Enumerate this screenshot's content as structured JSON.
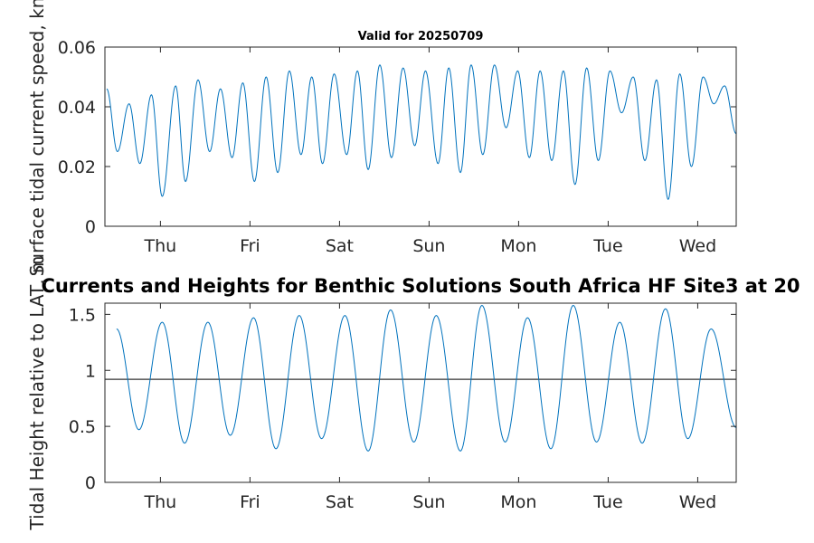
{
  "chart_data": [
    {
      "type": "line",
      "title": "Valid for 20250709",
      "ylabel": "Surface tidal current speed, kn",
      "xlabel": "",
      "xlim": [
        0,
        7.05
      ],
      "ylim": [
        0,
        0.06
      ],
      "yticks": [
        0,
        0.02,
        0.04,
        0.06
      ],
      "ytick_labels": [
        "0",
        "0.02",
        "0.04",
        "0.06"
      ],
      "xticks": [
        0.62,
        1.62,
        2.62,
        3.62,
        4.62,
        5.62,
        6.62
      ],
      "xtick_labels": [
        "Thu",
        "Fri",
        "Sat",
        "Sun",
        "Mon",
        "Tue",
        "Wed"
      ],
      "grid": false,
      "series_color": "#0072BD",
      "peaks": [
        [
          0.02,
          0.046
        ],
        [
          0.27,
          0.041
        ],
        [
          0.52,
          0.044
        ],
        [
          0.79,
          0.047
        ],
        [
          1.04,
          0.049
        ],
        [
          1.29,
          0.046
        ],
        [
          1.54,
          0.048
        ],
        [
          1.8,
          0.05
        ],
        [
          2.06,
          0.052
        ],
        [
          2.31,
          0.05
        ],
        [
          2.56,
          0.051
        ],
        [
          2.82,
          0.052
        ],
        [
          3.07,
          0.054
        ],
        [
          3.33,
          0.053
        ],
        [
          3.58,
          0.052
        ],
        [
          3.84,
          0.053
        ],
        [
          4.09,
          0.054
        ],
        [
          4.35,
          0.054
        ],
        [
          4.61,
          0.052
        ],
        [
          4.86,
          0.052
        ],
        [
          5.12,
          0.052
        ],
        [
          5.38,
          0.053
        ],
        [
          5.64,
          0.052
        ],
        [
          5.9,
          0.05
        ],
        [
          6.16,
          0.049
        ],
        [
          6.42,
          0.051
        ],
        [
          6.68,
          0.05
        ],
        [
          6.92,
          0.047
        ]
      ],
      "troughs": [
        [
          0.14,
          0.025
        ],
        [
          0.39,
          0.021
        ],
        [
          0.64,
          0.01
        ],
        [
          0.9,
          0.015
        ],
        [
          1.17,
          0.025
        ],
        [
          1.42,
          0.023
        ],
        [
          1.67,
          0.015
        ],
        [
          1.93,
          0.018
        ],
        [
          2.19,
          0.024
        ],
        [
          2.43,
          0.021
        ],
        [
          2.7,
          0.024
        ],
        [
          2.94,
          0.019
        ],
        [
          3.2,
          0.023
        ],
        [
          3.46,
          0.027
        ],
        [
          3.72,
          0.021
        ],
        [
          3.97,
          0.018
        ],
        [
          4.22,
          0.024
        ],
        [
          4.48,
          0.033
        ],
        [
          4.74,
          0.023
        ],
        [
          4.99,
          0.022
        ],
        [
          5.25,
          0.014
        ],
        [
          5.51,
          0.022
        ],
        [
          5.77,
          0.038
        ],
        [
          6.03,
          0.022
        ],
        [
          6.29,
          0.009
        ],
        [
          6.55,
          0.02
        ],
        [
          6.8,
          0.041
        ],
        [
          7.05,
          0.031
        ]
      ]
    },
    {
      "type": "line",
      "title": "Currents and Heights for Benthic Solutions South Africa HF Site3 at 20",
      "ylabel": "Tidal Height relative to LAT, m",
      "xlabel": "",
      "xlim": [
        0,
        7.05
      ],
      "ylim": [
        0,
        1.6
      ],
      "yticks": [
        0,
        0.5,
        1,
        1.5
      ],
      "ytick_labels": [
        "0",
        "0.5",
        "1",
        "1.5"
      ],
      "xticks": [
        0.62,
        1.62,
        2.62,
        3.62,
        4.62,
        5.62,
        6.62
      ],
      "xtick_labels": [
        "Thu",
        "Fri",
        "Sat",
        "Sun",
        "Mon",
        "Tue",
        "Wed"
      ],
      "grid": false,
      "series_color": "#0072BD",
      "reference_line": {
        "y": 0.92,
        "color": "#333333"
      },
      "peaks": [
        [
          0.13,
          1.37
        ],
        [
          0.64,
          1.43
        ],
        [
          1.15,
          1.43
        ],
        [
          1.66,
          1.47
        ],
        [
          2.17,
          1.49
        ],
        [
          2.68,
          1.49
        ],
        [
          3.19,
          1.54
        ],
        [
          3.7,
          1.49
        ],
        [
          4.21,
          1.58
        ],
        [
          4.72,
          1.47
        ],
        [
          5.23,
          1.58
        ],
        [
          5.75,
          1.43
        ],
        [
          6.26,
          1.55
        ],
        [
          6.77,
          1.37
        ]
      ],
      "troughs": [
        [
          0.38,
          0.47
        ],
        [
          0.89,
          0.35
        ],
        [
          1.4,
          0.42
        ],
        [
          1.91,
          0.3
        ],
        [
          2.42,
          0.39
        ],
        [
          2.94,
          0.28
        ],
        [
          3.45,
          0.36
        ],
        [
          3.97,
          0.28
        ],
        [
          4.47,
          0.36
        ],
        [
          4.98,
          0.3
        ],
        [
          5.49,
          0.36
        ],
        [
          6.0,
          0.35
        ],
        [
          6.51,
          0.39
        ],
        [
          7.05,
          0.49
        ]
      ]
    }
  ]
}
